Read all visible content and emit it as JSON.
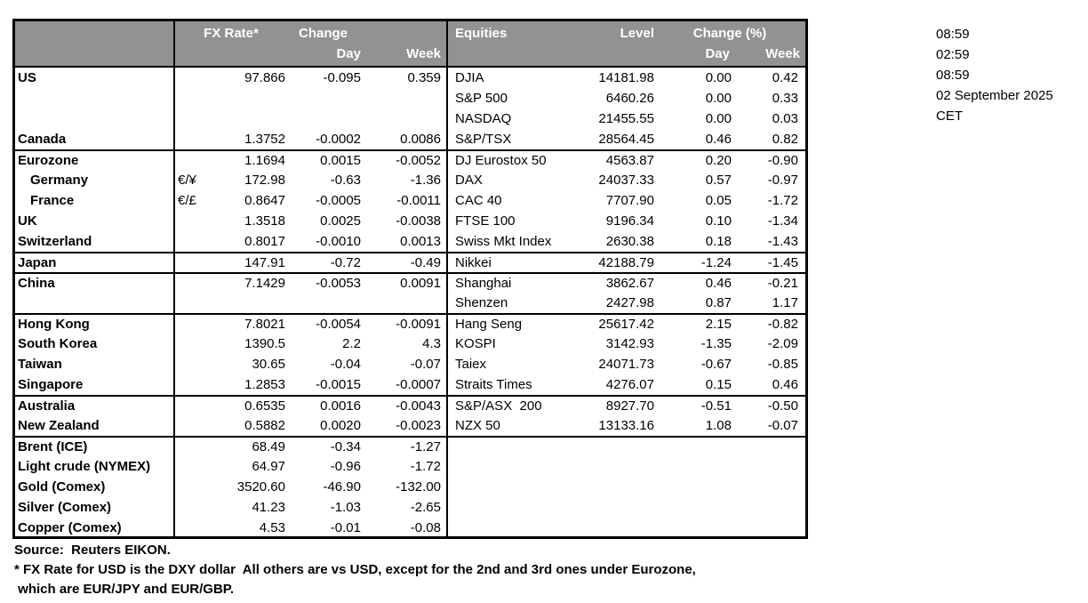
{
  "colors": {
    "header_bg": "#929292",
    "header_text": "#ffffff",
    "border": "#000000"
  },
  "header": {
    "fx_rate": "FX Rate*",
    "change": "Change",
    "fx_day": "Day",
    "fx_week": "Week",
    "equities": "Equities",
    "level": "Level",
    "change_pct": "Change (%)",
    "eq_day": "Day",
    "eq_week": "Week"
  },
  "rows": [
    {
      "label": "US",
      "indent": false,
      "sep": false,
      "sym": "",
      "fx_rate": "97.866",
      "fx_day": "-0.095",
      "fx_week": "0.359",
      "eq_name": "DJIA",
      "eq_level": "14181.98",
      "eq_day": "0.00",
      "eq_week": "0.42"
    },
    {
      "label": "",
      "indent": false,
      "sep": false,
      "sym": "",
      "fx_rate": "",
      "fx_day": "",
      "fx_week": "",
      "eq_name": "S&P 500",
      "eq_level": "6460.26",
      "eq_day": "0.00",
      "eq_week": "0.33"
    },
    {
      "label": "",
      "indent": false,
      "sep": false,
      "sym": "",
      "fx_rate": "",
      "fx_day": "",
      "fx_week": "",
      "eq_name": "NASDAQ",
      "eq_level": "21455.55",
      "eq_day": "0.00",
      "eq_week": "0.03"
    },
    {
      "label": "Canada",
      "indent": false,
      "sep": false,
      "sym": "",
      "fx_rate": "1.3752",
      "fx_day": "-0.0002",
      "fx_week": "0.0086",
      "eq_name": "S&P/TSX",
      "eq_level": "28564.45",
      "eq_day": "0.46",
      "eq_week": "0.82"
    },
    {
      "label": "Eurozone",
      "indent": false,
      "sep": true,
      "sym": "",
      "fx_rate": "1.1694",
      "fx_day": "0.0015",
      "fx_week": "-0.0052",
      "eq_name": "DJ Eurostox 50",
      "eq_level": "4563.87",
      "eq_day": "0.20",
      "eq_week": "-0.90"
    },
    {
      "label": "Germany",
      "indent": true,
      "sep": false,
      "sym": "€/¥",
      "fx_rate": "172.98",
      "fx_day": "-0.63",
      "fx_week": "-1.36",
      "eq_name": "DAX",
      "eq_level": "24037.33",
      "eq_day": "0.57",
      "eq_week": "-0.97"
    },
    {
      "label": "France",
      "indent": true,
      "sep": false,
      "sym": "€/£",
      "fx_rate": "0.8647",
      "fx_day": "-0.0005",
      "fx_week": "-0.0011",
      "eq_name": "CAC 40",
      "eq_level": "7707.90",
      "eq_day": "0.05",
      "eq_week": "-1.72"
    },
    {
      "label": "UK",
      "indent": false,
      "sep": false,
      "sym": "",
      "fx_rate": "1.3518",
      "fx_day": "0.0025",
      "fx_week": "-0.0038",
      "eq_name": "FTSE 100",
      "eq_level": "9196.34",
      "eq_day": "0.10",
      "eq_week": "-1.34"
    },
    {
      "label": "Switzerland",
      "indent": false,
      "sep": false,
      "sym": "",
      "fx_rate": "0.8017",
      "fx_day": "-0.0010",
      "fx_week": "0.0013",
      "eq_name": "Swiss Mkt Index",
      "eq_level": "2630.38",
      "eq_day": "0.18",
      "eq_week": "-1.43"
    },
    {
      "label": "Japan",
      "indent": false,
      "sep": true,
      "sym": "",
      "fx_rate": "147.91",
      "fx_day": "-0.72",
      "fx_week": "-0.49",
      "eq_name": "Nikkei",
      "eq_level": "42188.79",
      "eq_day": "-1.24",
      "eq_week": "-1.45"
    },
    {
      "label": "China",
      "indent": false,
      "sep": true,
      "sym": "",
      "fx_rate": "7.1429",
      "fx_day": "-0.0053",
      "fx_week": "0.0091",
      "eq_name": "Shanghai",
      "eq_level": "3862.67",
      "eq_day": "0.46",
      "eq_week": "-0.21"
    },
    {
      "label": "",
      "indent": false,
      "sep": false,
      "sym": "",
      "fx_rate": "",
      "fx_day": "",
      "fx_week": "",
      "eq_name": "Shenzen",
      "eq_level": "2427.98",
      "eq_day": "0.87",
      "eq_week": "1.17"
    },
    {
      "label": "Hong Kong",
      "indent": false,
      "sep": true,
      "sym": "",
      "fx_rate": "7.8021",
      "fx_day": "-0.0054",
      "fx_week": "-0.0091",
      "eq_name": "Hang Seng",
      "eq_level": "25617.42",
      "eq_day": "2.15",
      "eq_week": "-0.82"
    },
    {
      "label": "South Korea",
      "indent": false,
      "sep": false,
      "sym": "",
      "fx_rate": "1390.5",
      "fx_day": "2.2",
      "fx_week": "4.3",
      "eq_name": "KOSPI",
      "eq_level": "3142.93",
      "eq_day": "-1.35",
      "eq_week": "-2.09"
    },
    {
      "label": "Taiwan",
      "indent": false,
      "sep": false,
      "sym": "",
      "fx_rate": "30.65",
      "fx_day": "-0.04",
      "fx_week": "-0.07",
      "eq_name": "Taiex",
      "eq_level": "24071.73",
      "eq_day": "-0.67",
      "eq_week": "-0.85"
    },
    {
      "label": "Singapore",
      "indent": false,
      "sep": false,
      "sym": "",
      "fx_rate": "1.2853",
      "fx_day": "-0.0015",
      "fx_week": "-0.0007",
      "eq_name": "Straits Times",
      "eq_level": "4276.07",
      "eq_day": "0.15",
      "eq_week": "0.46"
    },
    {
      "label": "Australia",
      "indent": false,
      "sep": true,
      "sym": "",
      "fx_rate": "0.6535",
      "fx_day": "0.0016",
      "fx_week": "-0.0043",
      "eq_name": "S&P/ASX  200",
      "eq_level": "8927.70",
      "eq_day": "-0.51",
      "eq_week": "-0.50"
    },
    {
      "label": "New Zealand",
      "indent": false,
      "sep": false,
      "sym": "",
      "fx_rate": "0.5882",
      "fx_day": "0.0020",
      "fx_week": "-0.0023",
      "eq_name": "NZX 50",
      "eq_level": "13133.16",
      "eq_day": "1.08",
      "eq_week": "-0.07"
    },
    {
      "label": "Brent (ICE)",
      "indent": false,
      "sep": true,
      "sym": "",
      "fx_rate": "68.49",
      "fx_day": "-0.34",
      "fx_week": "-1.27",
      "eq_name": "",
      "eq_level": "",
      "eq_day": "",
      "eq_week": ""
    },
    {
      "label": "Light crude (NYMEX)",
      "indent": false,
      "sep": false,
      "sym": "",
      "fx_rate": "64.97",
      "fx_day": "-0.96",
      "fx_week": "-1.72",
      "eq_name": "",
      "eq_level": "",
      "eq_day": "",
      "eq_week": ""
    },
    {
      "label": "Gold (Comex)",
      "indent": false,
      "sep": false,
      "sym": "",
      "fx_rate": "3520.60",
      "fx_day": "-46.90",
      "fx_week": "-132.00",
      "eq_name": "",
      "eq_level": "",
      "eq_day": "",
      "eq_week": ""
    },
    {
      "label": "Silver (Comex)",
      "indent": false,
      "sep": false,
      "sym": "",
      "fx_rate": "41.23",
      "fx_day": "-1.03",
      "fx_week": "-2.65",
      "eq_name": "",
      "eq_level": "",
      "eq_day": "",
      "eq_week": ""
    },
    {
      "label": "Copper (Comex)",
      "indent": false,
      "sep": false,
      "sym": "",
      "fx_rate": "4.53",
      "fx_day": "-0.01",
      "fx_week": "-0.08",
      "eq_name": "",
      "eq_level": "",
      "eq_day": "",
      "eq_week": ""
    }
  ],
  "timestamps": [
    "08:59",
    "02:59",
    "08:59",
    "02 September 2025",
    "CET"
  ],
  "footer": {
    "source": "Source:  Reuters EIKON.",
    "note1": "* FX Rate for USD is the DXY dollar  All others are vs USD, except for the 2nd and 3rd ones under Eurozone,",
    "note2": " which are EUR/JPY and EUR/GBP."
  }
}
